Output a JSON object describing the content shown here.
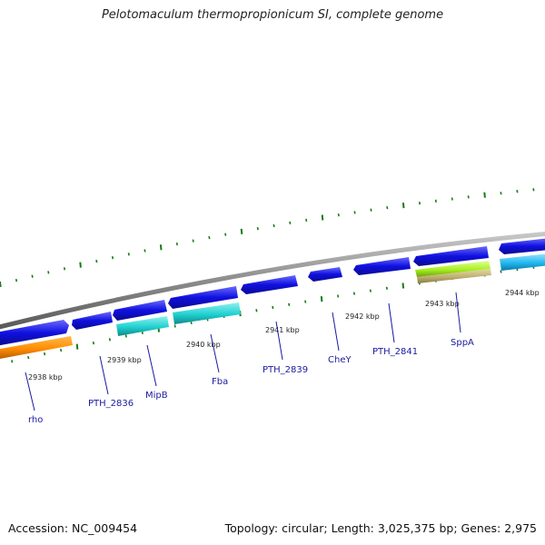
{
  "title": "Pelotomaculum thermopropionicum SI, complete genome",
  "footer": {
    "accession": "Accession: NC_009454",
    "summary": "Topology: circular; Length: 3,025,375 bp; Genes: 2,975"
  },
  "kbp_labels": [
    "2938 kbp",
    "2939 kbp",
    "2940 kbp",
    "2941 kbp",
    "2942 kbp",
    "2943 kbp",
    "2944 kbp"
  ],
  "genes": [
    "rho",
    "PTH_2836",
    "MipB",
    "Fba",
    "PTH_2839",
    "CheY",
    "PTH_2841",
    "SppA"
  ],
  "colors": {
    "backbone": "#8c8c8c",
    "cds": "#1010e0",
    "tick": "#1a7a1a",
    "label": "#1a1aa0",
    "orange": "#ff8c00",
    "cyan": "#20d0d0",
    "sky": "#20b8f0",
    "lime": "#a8f020",
    "tan": "#c0b070"
  }
}
